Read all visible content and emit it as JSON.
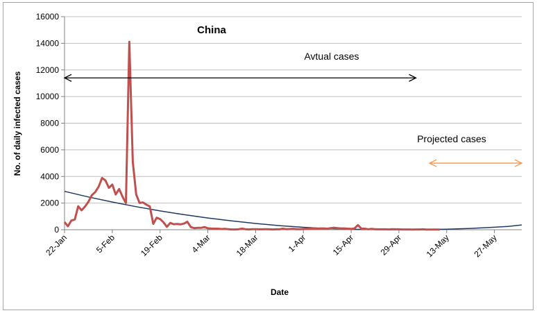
{
  "chart_data": {
    "type": "line",
    "title": "China",
    "xlabel": "Date",
    "ylabel": "No. of daily infected cases",
    "ylim": [
      0,
      16000
    ],
    "yticks": [
      0,
      2000,
      4000,
      6000,
      8000,
      10000,
      12000,
      14000,
      16000
    ],
    "xlim_days": [
      0,
      134
    ],
    "xtick_days": [
      0,
      14,
      28,
      42,
      56,
      70,
      84,
      98,
      112,
      126
    ],
    "xtick_labels": [
      "22-Jan",
      "5-Feb",
      "19-Feb",
      "4-Mar",
      "18-Mar",
      "1-Apr",
      "15-Apr",
      "29-Apr",
      "13-May",
      "27-May"
    ],
    "grid": "horizontal",
    "colors": {
      "actual": "#c0504d",
      "projected": "#1f3864",
      "grid": "#bfbfbf",
      "actual_arrow": "#000000",
      "projected_arrow": "#f79646"
    },
    "annotations": [
      {
        "text": "Avtual cases",
        "x_days": [
          0,
          103
        ],
        "y": 11400,
        "arrow_color": "#000000"
      },
      {
        "text": "Projected cases",
        "x_days": [
          107,
          135
        ],
        "y": 5000,
        "arrow_color": "#f79646"
      }
    ],
    "series": [
      {
        "style": "thick",
        "color": "#c0504d",
        "x": [
          0,
          1,
          2,
          3,
          4,
          5,
          6,
          7,
          8,
          9,
          10,
          11,
          12,
          13,
          14,
          15,
          16,
          17,
          18,
          19,
          20,
          21,
          22,
          23,
          24,
          25,
          26,
          27,
          28,
          29,
          30,
          31,
          32,
          33,
          34,
          35,
          36,
          37,
          38,
          39,
          40,
          41,
          42,
          43,
          44,
          45,
          46,
          47,
          48,
          49,
          50,
          51,
          52,
          53,
          54,
          55,
          56,
          57,
          58,
          59,
          60,
          61,
          62,
          63,
          64,
          65,
          66,
          67,
          68,
          69,
          70,
          71,
          72,
          73,
          74,
          75,
          76,
          77,
          78,
          79,
          80,
          81,
          82,
          83,
          84,
          85,
          86,
          87,
          88,
          89,
          90,
          91,
          92,
          93,
          94,
          95,
          96,
          97,
          98,
          99,
          100,
          101,
          102,
          103,
          104,
          105,
          106,
          107,
          108,
          109,
          110
        ],
        "y": [
          580,
          260,
          690,
          770,
          1760,
          1460,
          1740,
          2090,
          2590,
          2830,
          3230,
          3890,
          3700,
          3150,
          3390,
          2650,
          3060,
          2480,
          2000,
          14110,
          5090,
          2650,
          2010,
          2050,
          1880,
          1750,
          440,
          900,
          800,
          560,
          220,
          510,
          410,
          430,
          400,
          460,
          600,
          200,
          120,
          140,
          140,
          200,
          110,
          90,
          80,
          80,
          50,
          60,
          40,
          20,
          20,
          30,
          90,
          40,
          20,
          40,
          40,
          30,
          30,
          40,
          30,
          20,
          30,
          30,
          80,
          40,
          50,
          60,
          40,
          40,
          50,
          60,
          80,
          100,
          70,
          100,
          100,
          80,
          120,
          150,
          120,
          100,
          100,
          80,
          60,
          100,
          350,
          80,
          80,
          30,
          60,
          40,
          30,
          30,
          30,
          20,
          40,
          30,
          30,
          20,
          20,
          20,
          10,
          20,
          20,
          30,
          10,
          10,
          10,
          10,
          10
        ]
      },
      {
        "style": "thin",
        "color": "#1f3864",
        "x": [
          0,
          7,
          14,
          21,
          28,
          35,
          42,
          49,
          56,
          63,
          70,
          77,
          84,
          91,
          98,
          105,
          112,
          119,
          126,
          130,
          134
        ],
        "y": [
          2880,
          2460,
          2080,
          1730,
          1410,
          1130,
          880,
          660,
          470,
          310,
          185,
          90,
          30,
          5,
          0,
          10,
          40,
          100,
          190,
          250,
          360
        ]
      }
    ]
  }
}
